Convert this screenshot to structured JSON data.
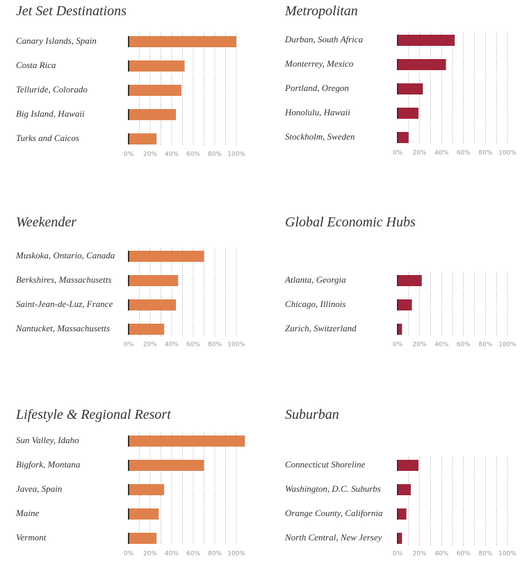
{
  "chart_data": [
    {
      "type": "bar",
      "orientation": "horizontal",
      "title": "Jet Set Destinations",
      "color": "#e0814c",
      "categories": [
        "Canary Islands, Spain",
        "Costa Rica",
        "Telluride, Colorado",
        "Big Island, Hawaii",
        "Turks and Caicos"
      ],
      "values": [
        100,
        52,
        49,
        44,
        26
      ],
      "xlim": [
        0,
        110
      ],
      "xticks": [
        {
          "value": 0,
          "label": "0%"
        },
        {
          "value": 20,
          "label": "20%"
        },
        {
          "value": 40,
          "label": "40%"
        },
        {
          "value": 60,
          "label": "60%"
        },
        {
          "value": 80,
          "label": "80%"
        },
        {
          "value": 100,
          "label": "100%"
        }
      ],
      "grid": true
    },
    {
      "type": "bar",
      "orientation": "horizontal",
      "title": "Metropolitan",
      "color": "#a2243a",
      "categories": [
        "Durban, South Africa",
        "Monterrey, Mexico",
        "Portland, Oregon",
        "Honolulu, Hawaii",
        "Stockholm, Sweden"
      ],
      "values": [
        52,
        44,
        23,
        19,
        10
      ],
      "xlim": [
        0,
        110
      ],
      "xticks": [
        {
          "value": 0,
          "label": "0%"
        },
        {
          "value": 20,
          "label": "20%"
        },
        {
          "value": 40,
          "label": "40%"
        },
        {
          "value": 60,
          "label": "60%"
        },
        {
          "value": 80,
          "label": "80%"
        },
        {
          "value": 100,
          "label": "100%"
        }
      ],
      "grid": true
    },
    {
      "type": "bar",
      "orientation": "horizontal",
      "title": "Weekender",
      "color": "#e0814c",
      "categories": [
        "Muskoka, Ontario, Canada",
        "Berkshires, Massachusetts",
        "Saint-Jean-de-Luz, France",
        "Nantucket, Massachusetts"
      ],
      "values": [
        70,
        46,
        44,
        33
      ],
      "xlim": [
        0,
        110
      ],
      "xticks": [
        {
          "value": 0,
          "label": "0%"
        },
        {
          "value": 20,
          "label": "20%"
        },
        {
          "value": 40,
          "label": "40%"
        },
        {
          "value": 60,
          "label": "60%"
        },
        {
          "value": 80,
          "label": "80%"
        },
        {
          "value": 100,
          "label": "100%"
        }
      ],
      "grid": true
    },
    {
      "type": "bar",
      "orientation": "horizontal",
      "title": "Global Economic Hubs",
      "color": "#a2243a",
      "categories": [
        "Atlanta, Georgia",
        "Chicago, Illinois",
        "Zurich, Switzerland"
      ],
      "values": [
        22,
        13,
        4
      ],
      "xlim": [
        0,
        110
      ],
      "xticks": [
        {
          "value": 0,
          "label": "0%"
        },
        {
          "value": 20,
          "label": "20%"
        },
        {
          "value": 40,
          "label": "40%"
        },
        {
          "value": 60,
          "label": "60%"
        },
        {
          "value": 80,
          "label": "80%"
        },
        {
          "value": 100,
          "label": "100%"
        }
      ],
      "grid": true
    },
    {
      "type": "bar",
      "orientation": "horizontal",
      "title": "Lifestyle & Regional Resort",
      "color": "#e0814c",
      "categories": [
        "Sun Valley, Idaho",
        "Bigfork, Montana",
        "Javea, Spain",
        "Maine",
        "Vermont"
      ],
      "values": [
        108,
        70,
        33,
        28,
        26
      ],
      "xlim": [
        0,
        110
      ],
      "xticks": [
        {
          "value": 0,
          "label": "0%"
        },
        {
          "value": 20,
          "label": "20%"
        },
        {
          "value": 40,
          "label": "40%"
        },
        {
          "value": 60,
          "label": "60%"
        },
        {
          "value": 80,
          "label": "80%"
        },
        {
          "value": 100,
          "label": "100%"
        }
      ],
      "grid": true
    },
    {
      "type": "bar",
      "orientation": "horizontal",
      "title": "Suburban",
      "color": "#a2243a",
      "categories": [
        "Connecticut Shoreline",
        "Washington, D.C. Suburbs",
        "Orange County, California",
        "North Central, New Jersey"
      ],
      "values": [
        19,
        12,
        8,
        4
      ],
      "xlim": [
        0,
        110
      ],
      "xticks": [
        {
          "value": 0,
          "label": "0%"
        },
        {
          "value": 20,
          "label": "20%"
        },
        {
          "value": 40,
          "label": "40%"
        },
        {
          "value": 60,
          "label": "60%"
        },
        {
          "value": 80,
          "label": "80%"
        },
        {
          "value": 100,
          "label": "100%"
        }
      ],
      "grid": true
    }
  ]
}
